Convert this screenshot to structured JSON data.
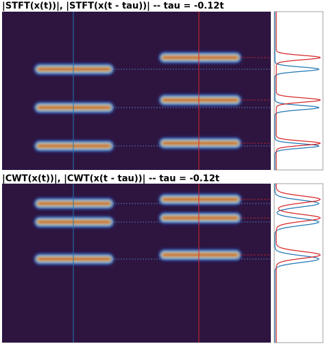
{
  "chart_data": [
    {
      "type": "heatmap",
      "title": "|STFT(x(t))|, |STFT(x(t - tau))| -- tau = -0.12t"
    },
    {
      "type": "heatmap",
      "title": "|CWT(x(t))|, |CWT(x(t - tau))| -- tau = -0.12t"
    }
  ]
}
